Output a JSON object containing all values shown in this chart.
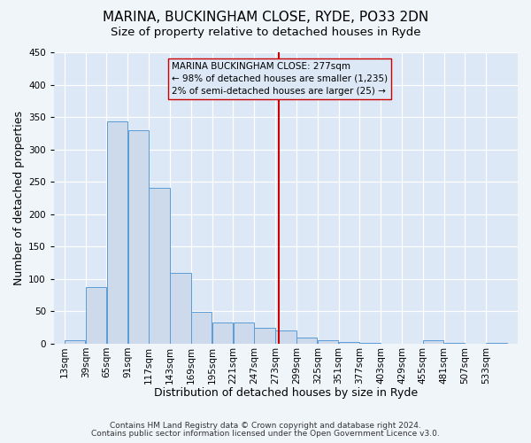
{
  "title": "MARINA, BUCKINGHAM CLOSE, RYDE, PO33 2DN",
  "subtitle": "Size of property relative to detached houses in Ryde",
  "xlabel": "Distribution of detached houses by size in Ryde",
  "ylabel": "Number of detached properties",
  "bin_labels": [
    "13sqm",
    "39sqm",
    "65sqm",
    "91sqm",
    "117sqm",
    "143sqm",
    "169sqm",
    "195sqm",
    "221sqm",
    "247sqm",
    "273sqm",
    "299sqm",
    "325sqm",
    "351sqm",
    "377sqm",
    "403sqm",
    "429sqm",
    "455sqm",
    "481sqm",
    "507sqm",
    "533sqm"
  ],
  "bar_values": [
    6,
    88,
    343,
    330,
    241,
    109,
    49,
    33,
    33,
    25,
    21,
    10,
    5,
    2,
    1,
    0,
    0,
    5,
    1,
    0,
    1
  ],
  "bin_edges": [
    13,
    39,
    65,
    91,
    117,
    143,
    169,
    195,
    221,
    247,
    273,
    299,
    325,
    351,
    377,
    403,
    429,
    455,
    481,
    507,
    533,
    559
  ],
  "bar_color": "#ccdaec",
  "bar_edge_color": "#5b9bd5",
  "vline_x": 277,
  "vline_color": "#cc0000",
  "annotation_text": "MARINA BUCKINGHAM CLOSE: 277sqm\n← 98% of detached houses are smaller (1,235)\n2% of semi-detached houses are larger (25) →",
  "annotation_box_edge": "#cc0000",
  "ylim": [
    0,
    450
  ],
  "footer1": "Contains HM Land Registry data © Crown copyright and database right 2024.",
  "footer2": "Contains public sector information licensed under the Open Government Licence v3.0.",
  "plot_bg_color": "#dce8f5",
  "fig_bg_color": "#f0f5fa",
  "grid_color": "#ffffff",
  "title_fontsize": 11,
  "subtitle_fontsize": 9.5,
  "axis_label_fontsize": 9,
  "tick_fontsize": 7.5,
  "annotation_fontsize": 7.5,
  "footer_fontsize": 6.5
}
